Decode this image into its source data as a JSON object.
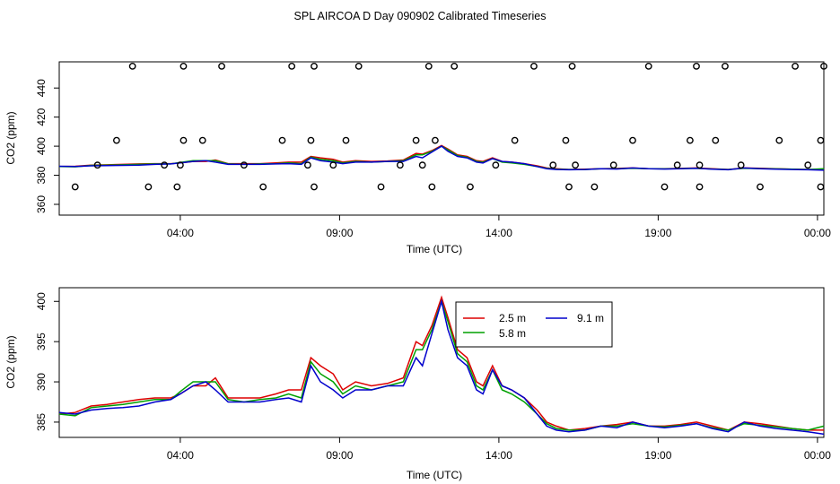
{
  "figure": {
    "title": "SPL AIRCOA D  Day 090902  Calibrated Timeseries"
  },
  "colors": {
    "2.5 m": "#dd0000",
    "5.8 m": "#00a000",
    "9.1 m": "#0000cc",
    "axes": "#000000"
  },
  "chart_data": [
    {
      "type": "line",
      "name": "top-panel",
      "xlabel": "Time (UTC)",
      "ylabel": "CO2 (ppm)",
      "xlim": [
        0.0,
        24.0
      ],
      "ylim": [
        352.6,
        458.0
      ],
      "x_ticks": [
        3.8,
        8.8,
        13.8,
        18.8,
        23.8
      ],
      "x_tick_labels": [
        "04:00",
        "09:00",
        "14:00",
        "19:00",
        "00:00"
      ],
      "y_ticks": [
        360,
        380,
        400,
        420,
        440
      ],
      "y_tick_labels": [
        "360",
        "380",
        "400",
        "420",
        "440"
      ],
      "series": [
        {
          "name": "2.5 m",
          "x": [
            0.0,
            0.5,
            1.0,
            1.5,
            2.0,
            2.5,
            3.0,
            3.5,
            3.8,
            4.2,
            4.6,
            4.9,
            5.3,
            5.8,
            6.3,
            6.8,
            7.2,
            7.6,
            7.9,
            8.2,
            8.6,
            8.9,
            9.3,
            9.8,
            10.3,
            10.8,
            11.2,
            11.4,
            11.7,
            12.0,
            12.2,
            12.5,
            12.8,
            13.1,
            13.3,
            13.6,
            13.9,
            14.2,
            14.6,
            15.0,
            15.3,
            15.6,
            16.0,
            16.5,
            17.0,
            17.5,
            18.0,
            18.5,
            19.0,
            19.5,
            20.0,
            20.5,
            21.0,
            21.5,
            22.0,
            22.5,
            23.0,
            23.5,
            24.0
          ],
          "values": [
            386.0,
            386.2,
            387.0,
            387.2,
            387.5,
            387.8,
            388.0,
            388.0,
            388.5,
            389.5,
            389.5,
            390.5,
            388.0,
            388.0,
            388.0,
            388.5,
            389.0,
            389.0,
            393.0,
            392.0,
            391.0,
            389.0,
            390.0,
            389.5,
            389.8,
            390.5,
            395.0,
            394.5,
            397.0,
            400.5,
            398.0,
            394.0,
            393.0,
            390.0,
            389.5,
            392.0,
            389.5,
            389.0,
            388.0,
            386.5,
            385.0,
            384.5,
            384.0,
            384.2,
            384.5,
            384.7,
            385.0,
            384.5,
            384.5,
            384.7,
            385.0,
            384.5,
            384.0,
            385.0,
            384.8,
            384.5,
            384.2,
            384.0,
            384.0
          ]
        },
        {
          "name": "5.8 m",
          "x": [
            0.0,
            0.5,
            1.0,
            1.5,
            2.0,
            2.5,
            3.0,
            3.5,
            3.8,
            4.2,
            4.6,
            4.9,
            5.3,
            5.8,
            6.3,
            6.8,
            7.2,
            7.6,
            7.9,
            8.2,
            8.6,
            8.9,
            9.3,
            9.8,
            10.3,
            10.8,
            11.2,
            11.4,
            11.7,
            12.0,
            12.2,
            12.5,
            12.8,
            13.1,
            13.3,
            13.6,
            13.9,
            14.2,
            14.6,
            15.0,
            15.3,
            15.6,
            16.0,
            16.5,
            17.0,
            17.5,
            18.0,
            18.5,
            19.0,
            19.5,
            20.0,
            20.5,
            21.0,
            21.5,
            22.0,
            22.5,
            23.0,
            23.5,
            24.0
          ],
          "values": [
            386.0,
            385.8,
            386.8,
            387.0,
            387.2,
            387.5,
            387.8,
            387.8,
            388.8,
            390.0,
            390.0,
            390.0,
            387.8,
            387.5,
            387.8,
            388.0,
            388.5,
            388.0,
            392.5,
            391.0,
            390.0,
            388.5,
            389.5,
            389.0,
            389.5,
            390.0,
            394.0,
            394.0,
            396.5,
            400.0,
            397.5,
            393.5,
            392.5,
            389.5,
            389.0,
            391.5,
            389.0,
            388.5,
            387.5,
            386.0,
            384.8,
            384.2,
            384.0,
            384.0,
            384.5,
            384.5,
            384.8,
            384.5,
            384.4,
            384.6,
            384.8,
            384.3,
            384.0,
            384.8,
            384.6,
            384.4,
            384.2,
            384.0,
            384.5
          ]
        },
        {
          "name": "9.1 m",
          "x": [
            0.0,
            0.5,
            1.0,
            1.5,
            2.0,
            2.5,
            3.0,
            3.5,
            3.8,
            4.2,
            4.6,
            4.9,
            5.3,
            5.8,
            6.3,
            6.8,
            7.2,
            7.6,
            7.9,
            8.2,
            8.6,
            8.9,
            9.3,
            9.8,
            10.3,
            10.8,
            11.2,
            11.4,
            11.7,
            12.0,
            12.2,
            12.5,
            12.8,
            13.1,
            13.3,
            13.6,
            13.9,
            14.2,
            14.6,
            15.0,
            15.3,
            15.6,
            16.0,
            16.5,
            17.0,
            17.5,
            18.0,
            18.5,
            19.0,
            19.5,
            20.0,
            20.5,
            21.0,
            21.5,
            22.0,
            22.5,
            23.0,
            23.5,
            24.0
          ],
          "values": [
            386.2,
            386.0,
            386.5,
            386.7,
            386.8,
            387.0,
            387.5,
            387.8,
            388.5,
            389.5,
            390.0,
            389.0,
            387.5,
            387.5,
            387.5,
            387.8,
            388.0,
            387.5,
            392.0,
            390.0,
            389.0,
            388.0,
            389.0,
            389.0,
            389.5,
            389.5,
            393.0,
            392.0,
            396.0,
            400.0,
            396.5,
            393.0,
            392.0,
            389.0,
            388.5,
            391.5,
            389.5,
            389.0,
            388.0,
            386.0,
            384.5,
            384.0,
            383.8,
            384.0,
            384.5,
            384.3,
            385.0,
            384.5,
            384.3,
            384.5,
            384.8,
            384.2,
            383.8,
            385.0,
            384.5,
            384.2,
            384.0,
            383.8,
            383.5
          ]
        }
      ],
      "outlier_points": {
        "x": [
          0.5,
          1.2,
          1.8,
          2.3,
          2.8,
          3.3,
          3.7,
          3.8,
          3.9,
          3.9,
          4.5,
          5.1,
          5.8,
          6.4,
          7.0,
          7.3,
          7.8,
          7.9,
          8.0,
          8.0,
          8.6,
          9.0,
          9.4,
          10.1,
          10.7,
          11.2,
          11.4,
          11.6,
          11.7,
          11.8,
          12.4,
          12.9,
          13.7,
          14.3,
          14.9,
          15.5,
          15.9,
          16.0,
          16.1,
          16.2,
          16.8,
          17.4,
          18.0,
          18.5,
          19.0,
          19.4,
          19.8,
          20.0,
          20.1,
          20.1,
          20.6,
          20.9,
          21.4,
          22.0,
          22.6,
          23.1,
          23.5,
          23.9,
          23.9,
          24.0
        ],
        "y": [
          372,
          387,
          404,
          455,
          372,
          387,
          372,
          387,
          404,
          455,
          404,
          455,
          387,
          372,
          404,
          455,
          387,
          404,
          455,
          372,
          387,
          404,
          455,
          372,
          387,
          404,
          387,
          455,
          372,
          404,
          455,
          372,
          387,
          404,
          455,
          387,
          404,
          372,
          455,
          387,
          372,
          387,
          404,
          455,
          372,
          387,
          404,
          455,
          372,
          387,
          404,
          455,
          387,
          372,
          404,
          455,
          387,
          372,
          404,
          455
        ]
      }
    },
    {
      "type": "line",
      "name": "bottom-panel",
      "xlabel": "Time (UTC)",
      "ylabel": "CO2 (ppm)",
      "xlim": [
        0.0,
        24.0
      ],
      "ylim": [
        383.1,
        401.7
      ],
      "x_ticks": [
        3.8,
        8.8,
        13.8,
        18.8,
        23.8
      ],
      "x_tick_labels": [
        "04:00",
        "09:00",
        "14:00",
        "19:00",
        "00:00"
      ],
      "y_ticks": [
        385,
        390,
        395,
        400
      ],
      "y_tick_labels": [
        "385",
        "390",
        "395",
        "400"
      ],
      "legend": {
        "entries": [
          "2.5 m",
          "5.8 m",
          "9.1 m"
        ],
        "position": "top-right"
      },
      "series": [
        {
          "name": "2.5 m",
          "x": [
            0.0,
            0.5,
            1.0,
            1.5,
            2.0,
            2.5,
            3.0,
            3.5,
            3.8,
            4.2,
            4.6,
            4.9,
            5.3,
            5.8,
            6.3,
            6.8,
            7.2,
            7.6,
            7.9,
            8.2,
            8.6,
            8.9,
            9.3,
            9.8,
            10.3,
            10.8,
            11.2,
            11.4,
            11.7,
            12.0,
            12.2,
            12.5,
            12.8,
            13.1,
            13.3,
            13.6,
            13.9,
            14.2,
            14.6,
            15.0,
            15.3,
            15.6,
            16.0,
            16.5,
            17.0,
            17.5,
            18.0,
            18.5,
            19.0,
            19.5,
            20.0,
            20.5,
            21.0,
            21.5,
            22.0,
            22.5,
            23.0,
            23.5,
            24.0
          ],
          "values": [
            386.0,
            386.2,
            387.0,
            387.2,
            387.5,
            387.8,
            388.0,
            388.0,
            388.5,
            389.5,
            389.5,
            390.5,
            388.0,
            388.0,
            388.0,
            388.5,
            389.0,
            389.0,
            393.0,
            392.0,
            391.0,
            389.0,
            390.0,
            389.5,
            389.8,
            390.5,
            395.0,
            394.5,
            397.0,
            400.5,
            398.0,
            394.0,
            393.0,
            390.0,
            389.5,
            392.0,
            389.5,
            389.0,
            388.0,
            386.5,
            385.0,
            384.5,
            384.0,
            384.2,
            384.5,
            384.7,
            385.0,
            384.5,
            384.5,
            384.7,
            385.0,
            384.5,
            384.0,
            385.0,
            384.8,
            384.5,
            384.2,
            384.0,
            384.0
          ]
        },
        {
          "name": "5.8 m",
          "x": [
            0.0,
            0.5,
            1.0,
            1.5,
            2.0,
            2.5,
            3.0,
            3.5,
            3.8,
            4.2,
            4.6,
            4.9,
            5.3,
            5.8,
            6.3,
            6.8,
            7.2,
            7.6,
            7.9,
            8.2,
            8.6,
            8.9,
            9.3,
            9.8,
            10.3,
            10.8,
            11.2,
            11.4,
            11.7,
            12.0,
            12.2,
            12.5,
            12.8,
            13.1,
            13.3,
            13.6,
            13.9,
            14.2,
            14.6,
            15.0,
            15.3,
            15.6,
            16.0,
            16.5,
            17.0,
            17.5,
            18.0,
            18.5,
            19.0,
            19.5,
            20.0,
            20.5,
            21.0,
            21.5,
            22.0,
            22.5,
            23.0,
            23.5,
            24.0
          ],
          "values": [
            386.0,
            385.8,
            386.8,
            387.0,
            387.2,
            387.5,
            387.8,
            387.8,
            388.8,
            390.0,
            390.0,
            390.0,
            387.8,
            387.5,
            387.8,
            388.0,
            388.5,
            388.0,
            392.5,
            391.0,
            390.0,
            388.5,
            389.5,
            389.0,
            389.5,
            390.0,
            394.0,
            394.0,
            396.5,
            400.0,
            397.5,
            393.5,
            392.5,
            389.5,
            389.0,
            391.5,
            389.0,
            388.5,
            387.5,
            386.0,
            384.8,
            384.2,
            384.0,
            384.0,
            384.5,
            384.5,
            384.8,
            384.5,
            384.4,
            384.6,
            384.8,
            384.3,
            384.0,
            384.8,
            384.6,
            384.4,
            384.2,
            384.0,
            384.5
          ]
        },
        {
          "name": "9.1 m",
          "x": [
            0.0,
            0.5,
            1.0,
            1.5,
            2.0,
            2.5,
            3.0,
            3.5,
            3.8,
            4.2,
            4.6,
            4.9,
            5.3,
            5.8,
            6.3,
            6.8,
            7.2,
            7.6,
            7.9,
            8.2,
            8.6,
            8.9,
            9.3,
            9.8,
            10.3,
            10.8,
            11.2,
            11.4,
            11.7,
            12.0,
            12.2,
            12.5,
            12.8,
            13.1,
            13.3,
            13.6,
            13.9,
            14.2,
            14.6,
            15.0,
            15.3,
            15.6,
            16.0,
            16.5,
            17.0,
            17.5,
            18.0,
            18.5,
            19.0,
            19.5,
            20.0,
            20.5,
            21.0,
            21.5,
            22.0,
            22.5,
            23.0,
            23.5,
            24.0
          ],
          "values": [
            386.2,
            386.0,
            386.5,
            386.7,
            386.8,
            387.0,
            387.5,
            387.8,
            388.5,
            389.5,
            390.0,
            389.0,
            387.5,
            387.5,
            387.5,
            387.8,
            388.0,
            387.5,
            392.0,
            390.0,
            389.0,
            388.0,
            389.0,
            389.0,
            389.5,
            389.5,
            393.0,
            392.0,
            396.0,
            400.0,
            396.5,
            393.0,
            392.0,
            389.0,
            388.5,
            391.5,
            389.5,
            389.0,
            388.0,
            386.0,
            384.5,
            384.0,
            383.8,
            384.0,
            384.5,
            384.3,
            385.0,
            384.5,
            384.3,
            384.5,
            384.8,
            384.2,
            383.8,
            385.0,
            384.5,
            384.2,
            384.0,
            383.8,
            383.5
          ]
        }
      ]
    }
  ]
}
